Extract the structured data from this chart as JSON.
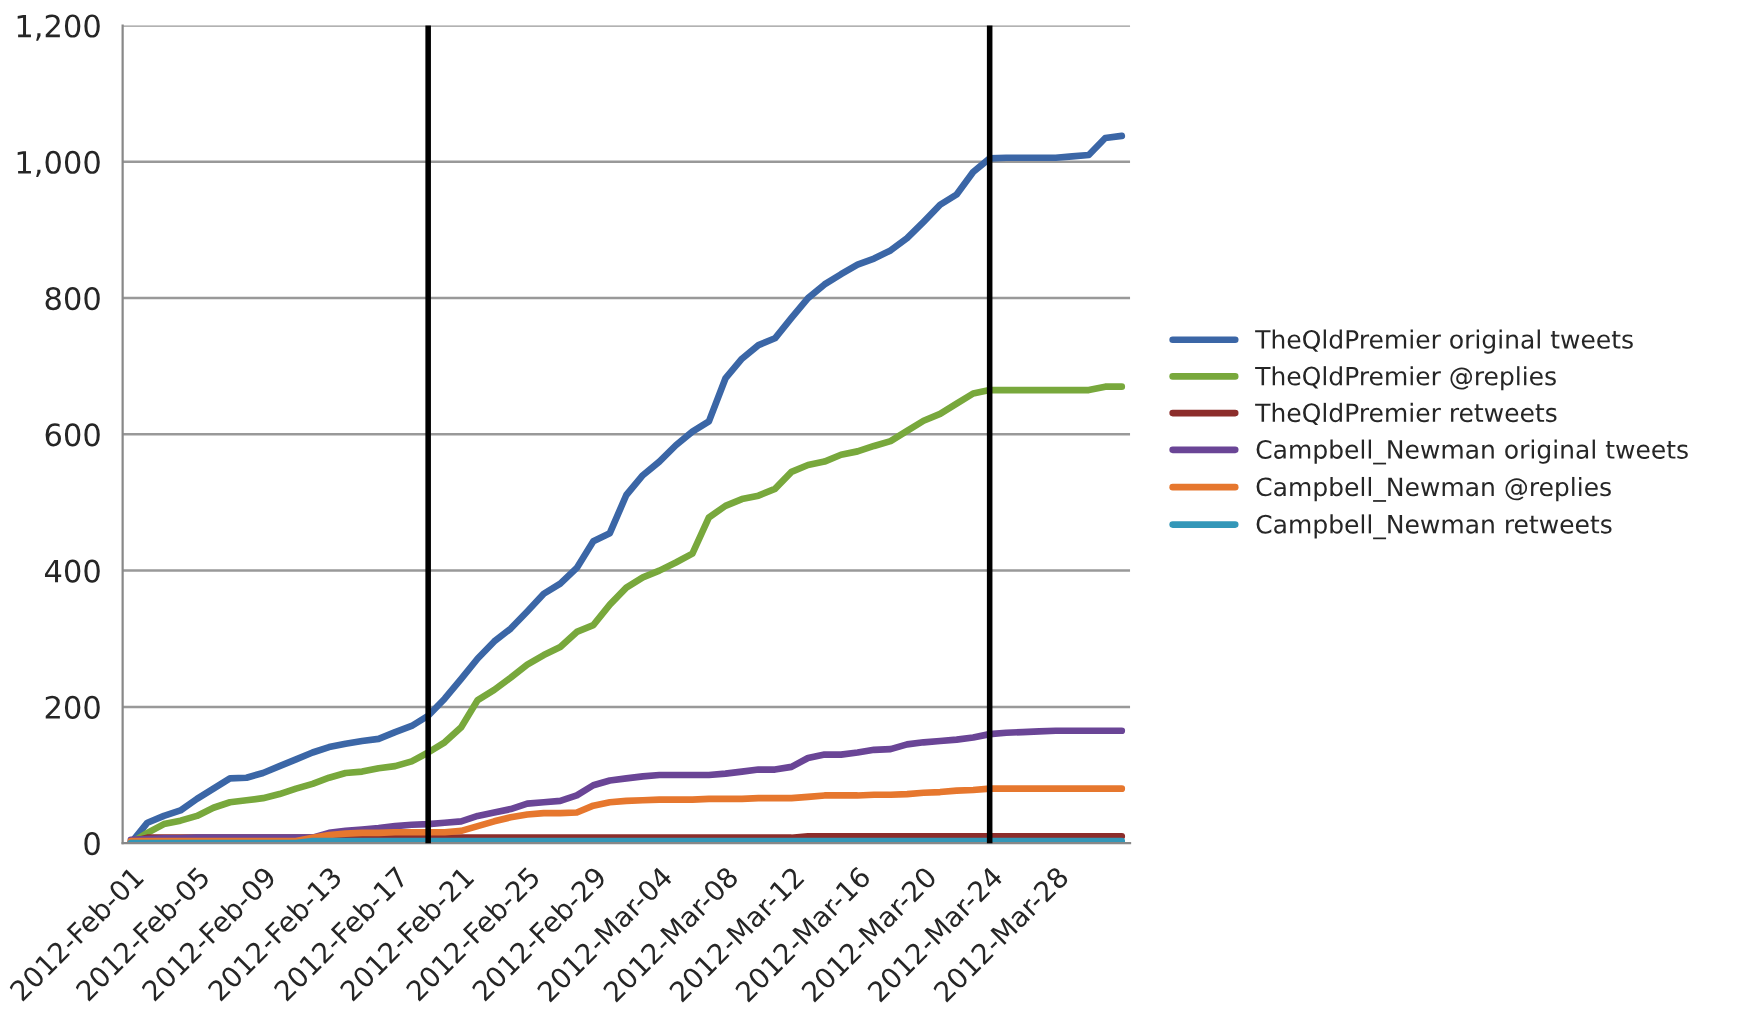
{
  "chart_data": {
    "type": "line",
    "x": [
      "2012-02-01",
      "2012-02-02",
      "2012-02-03",
      "2012-02-04",
      "2012-02-05",
      "2012-02-06",
      "2012-02-07",
      "2012-02-08",
      "2012-02-09",
      "2012-02-10",
      "2012-02-11",
      "2012-02-12",
      "2012-02-13",
      "2012-02-14",
      "2012-02-15",
      "2012-02-16",
      "2012-02-17",
      "2012-02-18",
      "2012-02-19",
      "2012-02-20",
      "2012-02-21",
      "2012-02-22",
      "2012-02-23",
      "2012-02-24",
      "2012-02-25",
      "2012-02-26",
      "2012-02-27",
      "2012-02-28",
      "2012-02-29",
      "2012-03-01",
      "2012-03-02",
      "2012-03-03",
      "2012-03-04",
      "2012-03-05",
      "2012-03-06",
      "2012-03-07",
      "2012-03-08",
      "2012-03-09",
      "2012-03-10",
      "2012-03-11",
      "2012-03-12",
      "2012-03-13",
      "2012-03-14",
      "2012-03-15",
      "2012-03-16",
      "2012-03-17",
      "2012-03-18",
      "2012-03-19",
      "2012-03-20",
      "2012-03-21",
      "2012-03-22",
      "2012-03-23",
      "2012-03-24",
      "2012-03-25",
      "2012-03-26",
      "2012-03-27",
      "2012-03-28",
      "2012-03-29",
      "2012-03-30",
      "2012-03-31",
      "2012-04-01"
    ],
    "series": [
      {
        "name": "TheQldPremier original tweets",
        "color": "#3b66a6",
        "values": [
          0,
          30,
          40,
          48,
          65,
          80,
          95,
          96,
          103,
          113,
          123,
          133,
          141,
          146,
          150,
          153,
          163,
          172,
          187,
          212,
          241,
          271,
          296,
          315,
          340,
          366,
          381,
          404,
          443,
          455,
          511,
          540,
          560,
          584,
          604,
          619,
          682,
          711,
          731,
          741,
          771,
          800,
          820,
          835,
          849,
          858,
          870,
          888,
          912,
          937,
          952,
          985,
          1005,
          1006,
          1006,
          1006,
          1006,
          1008,
          1010,
          1035,
          1038
        ]
      },
      {
        "name": "TheQldPremier @replies",
        "color": "#78a83c",
        "values": [
          0,
          15,
          28,
          33,
          40,
          52,
          60,
          63,
          66,
          72,
          80,
          87,
          96,
          103,
          105,
          110,
          113,
          120,
          133,
          148,
          170,
          210,
          225,
          243,
          262,
          276,
          288,
          310,
          320,
          350,
          375,
          390,
          400,
          412,
          425,
          478,
          495,
          505,
          510,
          520,
          545,
          555,
          560,
          570,
          575,
          583,
          590,
          605,
          620,
          630,
          645,
          660,
          665,
          665,
          665,
          665,
          665,
          665,
          665,
          670,
          670
        ]
      },
      {
        "name": "TheQldPremier retweets",
        "color": "#8c2d2b",
        "values": [
          2,
          8,
          8,
          8,
          8,
          8,
          8,
          8,
          8,
          8,
          8,
          8,
          8,
          8,
          8,
          8,
          8,
          8,
          8,
          8,
          8,
          8,
          8,
          8,
          8,
          8,
          8,
          8,
          8,
          8,
          8,
          8,
          8,
          8,
          8,
          8,
          8,
          8,
          8,
          8,
          8,
          10,
          10,
          10,
          10,
          10,
          10,
          10,
          10,
          10,
          10,
          10,
          10,
          10,
          10,
          10,
          10,
          10,
          10,
          10,
          10
        ]
      },
      {
        "name": "Campbell_Newman original tweets",
        "color": "#6a4596",
        "values": [
          5,
          6,
          7,
          7,
          8,
          8,
          8,
          8,
          8,
          8,
          8,
          8,
          15,
          18,
          20,
          22,
          25,
          27,
          28,
          30,
          32,
          40,
          45,
          50,
          58,
          60,
          62,
          70,
          85,
          92,
          95,
          98,
          100,
          100,
          100,
          100,
          102,
          105,
          108,
          108,
          112,
          125,
          130,
          130,
          133,
          137,
          138,
          145,
          148,
          150,
          152,
          155,
          160,
          162,
          163,
          164,
          165,
          165,
          165,
          165,
          165
        ]
      },
      {
        "name": "Campbell_Newman @replies",
        "color": "#e6772e",
        "values": [
          3,
          3,
          3,
          3,
          3,
          3,
          3,
          3,
          3,
          3,
          3,
          8,
          12,
          14,
          15,
          15,
          16,
          16,
          16,
          16,
          18,
          25,
          32,
          38,
          42,
          44,
          44,
          45,
          55,
          60,
          62,
          63,
          64,
          64,
          64,
          65,
          65,
          65,
          66,
          66,
          66,
          68,
          70,
          70,
          70,
          71,
          71,
          72,
          74,
          75,
          77,
          78,
          80,
          80,
          80,
          80,
          80,
          80,
          80,
          80,
          80
        ]
      },
      {
        "name": "Campbell_Newman retweets",
        "color": "#3397b8",
        "values": [
          0,
          0,
          0,
          0,
          0,
          0,
          0,
          0,
          0,
          0,
          0,
          3,
          3,
          3,
          3,
          3,
          3,
          3,
          3,
          3,
          3,
          3,
          3,
          3,
          3,
          3,
          3,
          3,
          3,
          3,
          3,
          3,
          3,
          3,
          3,
          3,
          3,
          3,
          3,
          3,
          3,
          3,
          3,
          3,
          3,
          3,
          3,
          3,
          3,
          3,
          3,
          3,
          3,
          3,
          3,
          3,
          3,
          3,
          3,
          3,
          3
        ]
      }
    ],
    "xlim": [
      "2012-01-31T12:00",
      "2012-04-01T12:00"
    ],
    "xticks": [
      {
        "value": "2012-02-01",
        "label": "2012-Feb-01"
      },
      {
        "value": "2012-02-05",
        "label": "2012-Feb-05"
      },
      {
        "value": "2012-02-09",
        "label": "2012-Feb-09"
      },
      {
        "value": "2012-02-13",
        "label": "2012-Feb-13"
      },
      {
        "value": "2012-02-17",
        "label": "2012-Feb-17"
      },
      {
        "value": "2012-02-21",
        "label": "2012-Feb-21"
      },
      {
        "value": "2012-02-25",
        "label": "2012-Feb-25"
      },
      {
        "value": "2012-02-29",
        "label": "2012-Feb-29"
      },
      {
        "value": "2012-03-04",
        "label": "2012-Mar-04"
      },
      {
        "value": "2012-03-08",
        "label": "2012-Mar-08"
      },
      {
        "value": "2012-03-12",
        "label": "2012-Mar-12"
      },
      {
        "value": "2012-03-16",
        "label": "2012-Mar-16"
      },
      {
        "value": "2012-03-20",
        "label": "2012-Mar-20"
      },
      {
        "value": "2012-03-24",
        "label": "2012-Mar-24"
      },
      {
        "value": "2012-03-28",
        "label": "2012-Mar-28"
      }
    ],
    "ylim": [
      0,
      1200
    ],
    "yticks": [
      0,
      200,
      400,
      600,
      800,
      {
        "value": 1000,
        "label": "1,000"
      },
      {
        "value": 1200,
        "label": "1,200"
      }
    ],
    "ref_lines": [
      {
        "axis": "x",
        "value": "2012-02-19",
        "color": "#000000"
      },
      {
        "axis": "x",
        "value": "2012-03-24",
        "color": "#000000"
      }
    ],
    "grid": "y",
    "legend": "right",
    "marker": "none",
    "line_style": "solid"
  }
}
